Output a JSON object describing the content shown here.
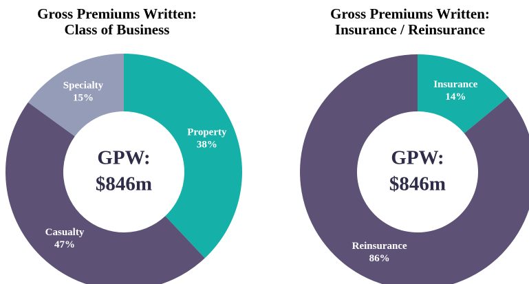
{
  "chart_data": [
    {
      "type": "pie",
      "title": "Gross Premiums Written:",
      "subtitle": "Class of Business",
      "categories": [
        "Property",
        "Casualty",
        "Specialty"
      ],
      "values": [
        38,
        47,
        15
      ],
      "value_labels": [
        "38%",
        "47%",
        "15%"
      ],
      "colors": [
        "#15b0a7",
        "#5d5275",
        "#959cb8"
      ],
      "center_text": [
        "GPW:",
        "$846m"
      ]
    },
    {
      "type": "pie",
      "title": "Gross Premiums Written:",
      "subtitle": "Insurance / Reinsurance",
      "categories": [
        "Insurance",
        "Reinsurance"
      ],
      "values": [
        14,
        86
      ],
      "value_labels": [
        "14%",
        "86%"
      ],
      "colors": [
        "#15b0a7",
        "#5d5275"
      ],
      "center_text": [
        "GPW:",
        "$846m"
      ]
    }
  ]
}
